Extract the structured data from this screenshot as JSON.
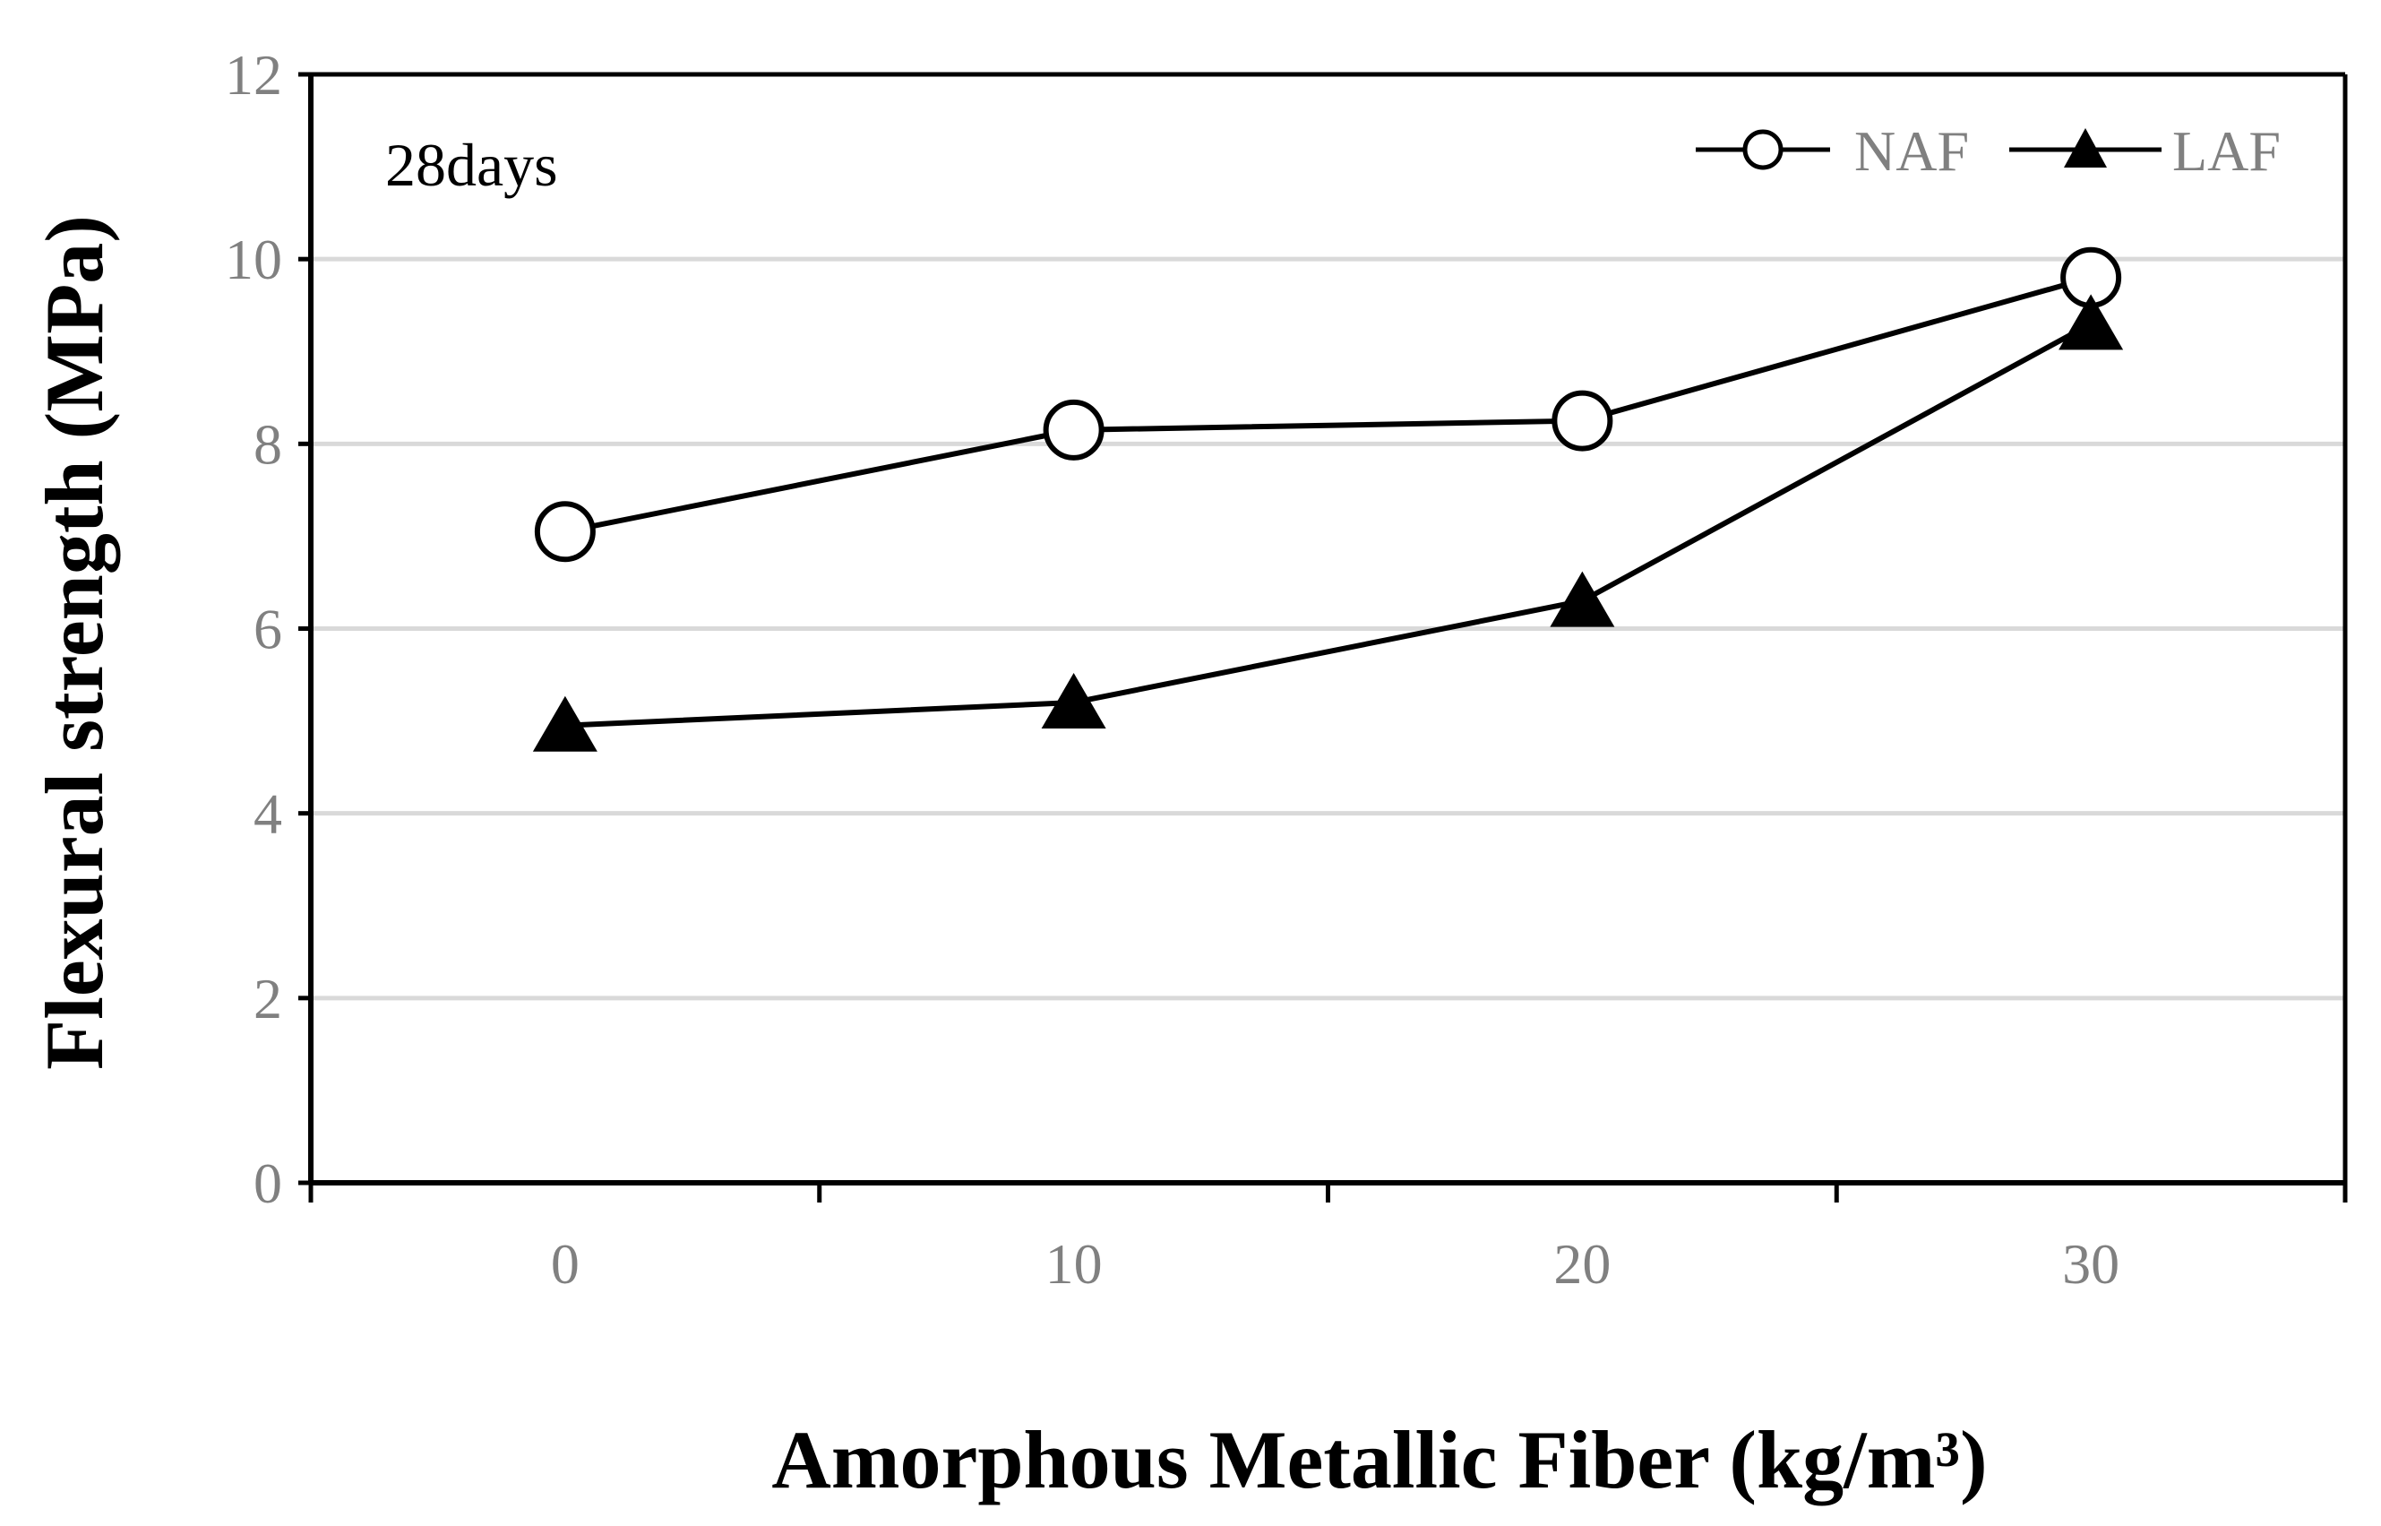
{
  "chart_data": {
    "type": "line",
    "x": [
      0,
      10,
      20,
      30
    ],
    "xlabel": "Amorphous Metallic Fiber (kg/m³)",
    "ylabel": "Flexural strength (MPa)",
    "xlim": [
      -5,
      35
    ],
    "ylim": [
      0,
      12
    ],
    "x_ticks": [
      "0",
      "10",
      "20",
      "30"
    ],
    "y_ticks": [
      "0",
      "2",
      "4",
      "6",
      "8",
      "10",
      "12"
    ],
    "annotation": "28days",
    "grid": "horizontal",
    "legend_position": "top-right",
    "series": [
      {
        "name": "NAF",
        "marker": "open-circle",
        "values": [
          7.05,
          8.15,
          8.25,
          9.8
        ]
      },
      {
        "name": "LAF",
        "marker": "filled-triangle",
        "values": [
          4.95,
          5.2,
          6.3,
          9.3
        ]
      }
    ],
    "colors": {
      "line": "#000000",
      "grid": "#d9d9d9",
      "tick_text": "#808080"
    }
  }
}
